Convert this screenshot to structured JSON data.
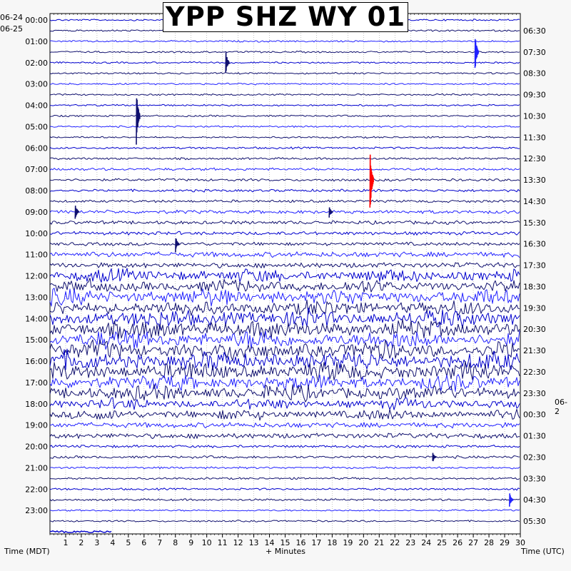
{
  "title": "YPP SHZ WY 01",
  "left_date_top": "06-24",
  "left_date": "06-25",
  "right_date": "06-2",
  "xlabel_left": "Time (MDT)",
  "xlabel_center": "+ Minutes",
  "xlabel_right": "Time (UTC)",
  "colors": {
    "trace_a": "#0000cd",
    "trace_b": "#10106e",
    "trace_c": "#2222ff",
    "event": "#ff0000",
    "grid": "#a0a0a0"
  },
  "chart_data": {
    "type": "helicorder",
    "xlim": [
      0,
      30
    ],
    "x_ticks": [
      1,
      2,
      3,
      4,
      5,
      6,
      7,
      8,
      9,
      10,
      11,
      12,
      13,
      14,
      15,
      16,
      17,
      18,
      19,
      20,
      21,
      22,
      23,
      24,
      25,
      26,
      27,
      28,
      29,
      30
    ],
    "left_hour_labels": [
      "00:00",
      "01:00",
      "02:00",
      "03:00",
      "04:00",
      "05:00",
      "06:00",
      "07:00",
      "08:00",
      "09:00",
      "10:00",
      "11:00",
      "12:00",
      "13:00",
      "14:00",
      "15:00",
      "16:00",
      "17:00",
      "18:00",
      "19:00",
      "20:00",
      "21:00",
      "22:00",
      "23:00"
    ],
    "right_hour_labels": [
      "06:30",
      "07:30",
      "08:30",
      "09:30",
      "10:30",
      "11:30",
      "12:30",
      "13:30",
      "14:30",
      "15:30",
      "16:30",
      "17:30",
      "18:30",
      "19:30",
      "20:30",
      "21:30",
      "22:30",
      "23:30",
      "00:30",
      "01:30",
      "02:30",
      "03:30",
      "04:30",
      "05:30"
    ],
    "minutes_per_line": 30,
    "noise_by_hour": [
      1,
      1,
      1,
      1,
      1,
      1,
      1.2,
      1.5,
      1.5,
      2,
      2,
      3,
      5,
      6,
      7,
      7,
      7,
      6,
      4,
      3,
      1.5,
      1.2,
      1.2,
      1
    ],
    "events": [
      {
        "hour": 4.5,
        "minute": 5.6,
        "amplitude": 45,
        "color": "trace_b"
      },
      {
        "hour": 7.5,
        "minute": 20.5,
        "amplitude": 50,
        "color": "event"
      },
      {
        "hour": 2.0,
        "minute": 11.3,
        "amplitude": 18,
        "color": "trace_b"
      },
      {
        "hour": 1.5,
        "minute": 27.2,
        "amplitude": 28,
        "color": "trace_c"
      },
      {
        "hour": 9.0,
        "minute": 1.7,
        "amplitude": 14,
        "color": "trace_b"
      },
      {
        "hour": 10.5,
        "minute": 8.1,
        "amplitude": 12,
        "color": "trace_b"
      },
      {
        "hour": 9.0,
        "minute": 17.9,
        "amplitude": 8,
        "color": "trace_b"
      },
      {
        "hour": 22.5,
        "minute": 29.4,
        "amplitude": 12,
        "color": "trace_c"
      },
      {
        "hour": 20.5,
        "minute": 24.5,
        "amplitude": 8,
        "color": "trace_b"
      }
    ]
  }
}
